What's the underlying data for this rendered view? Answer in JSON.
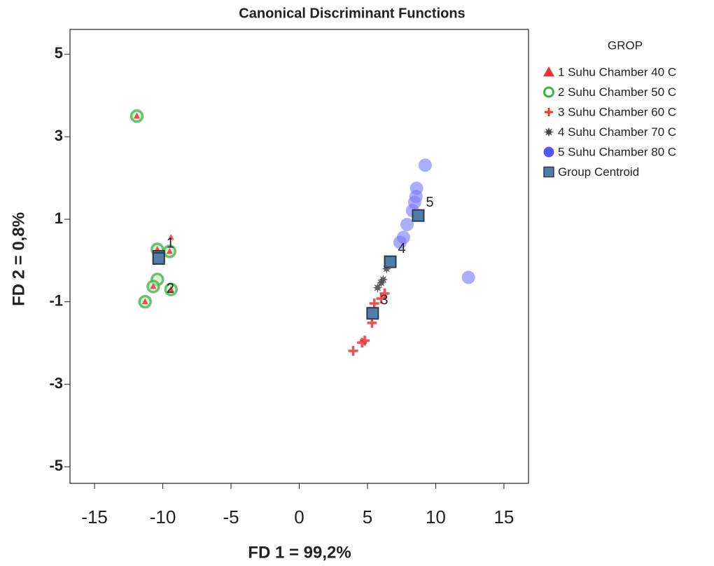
{
  "chart_data": {
    "type": "scatter",
    "title": "Canonical Discriminant Functions",
    "xlabel": "FD 1 = 99,2%",
    "ylabel": "FD 2 = 0,8%",
    "xlim": [
      -16.8,
      16.8
    ],
    "ylim": [
      -5.4,
      5.6
    ],
    "xticks": [
      -15,
      -10,
      -5,
      0,
      5,
      10,
      15
    ],
    "yticks": [
      5,
      3,
      1,
      -1,
      -3,
      -5
    ],
    "legend_title": "GROP",
    "legend": "right",
    "series": [
      {
        "name": "2 Suhu Chamber 50 C",
        "color": "#3cb043",
        "marker": "ring",
        "x": [
          -10.4,
          -10.7,
          -9.4,
          -11.3,
          -11.9,
          -9.5,
          -10.4
        ],
        "y": [
          -0.46,
          -0.63,
          -0.7,
          -1.0,
          3.5,
          0.22,
          0.27
        ]
      },
      {
        "name": "1 Suhu Chamber 40 C",
        "color": "#ee3333",
        "marker": "triangle",
        "x": [
          -9.4,
          -9.5,
          -10.4,
          -11.9,
          -10.7,
          -9.4,
          -11.3
        ],
        "y": [
          0.56,
          0.22,
          0.27,
          3.5,
          -0.63,
          -0.7,
          -1.0
        ]
      },
      {
        "name": "3 Suhu Chamber 60 C",
        "color": "#ee3333",
        "marker": "plus",
        "x": [
          3.95,
          4.6,
          4.8,
          5.33,
          5.5,
          6.0,
          6.26
        ],
        "y": [
          -2.19,
          -1.99,
          -1.94,
          -1.51,
          -1.04,
          -0.92,
          -0.8
        ]
      },
      {
        "name": "4 Suhu Chamber 70 C",
        "color": "#444444",
        "marker": "star",
        "x": [
          5.74,
          6.0,
          6.15,
          6.4,
          6.67
        ],
        "y": [
          -0.66,
          -0.54,
          -0.46,
          -0.2,
          -0.07
        ]
      },
      {
        "name": "5 Suhu Chamber 80 C",
        "color": "#7777ff",
        "marker": "circle",
        "x": [
          7.38,
          7.64,
          7.9,
          8.3,
          8.46,
          8.56,
          8.6,
          9.23,
          12.4
        ],
        "y": [
          0.44,
          0.56,
          0.87,
          1.21,
          1.41,
          1.55,
          1.75,
          2.31,
          -0.41
        ]
      },
      {
        "name": "Group Centroid",
        "color": "#4f7fa8",
        "marker": "square",
        "x": [
          -10.3,
          -10.3,
          5.38,
          6.67,
          8.72
        ],
        "y": [
          0.1,
          0.05,
          -1.28,
          -0.03,
          1.09
        ],
        "labels": [
          "1",
          "2",
          "3",
          "4",
          "5"
        ]
      }
    ],
    "legend_order": [
      1,
      0,
      2,
      3,
      4,
      5
    ]
  }
}
